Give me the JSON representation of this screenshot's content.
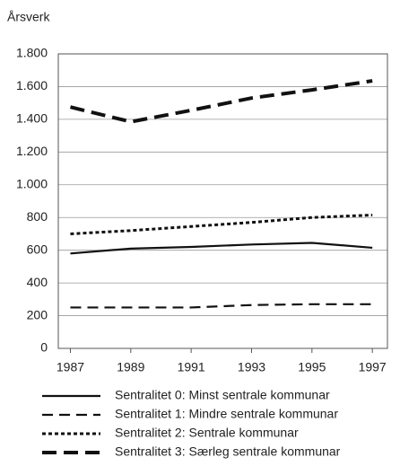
{
  "chart_data": {
    "type": "line",
    "y_label": "Årsverk",
    "x": [
      1987,
      1989,
      1991,
      1993,
      1995,
      1997
    ],
    "xlim": [
      1986.6,
      1997.5
    ],
    "xticks": [
      1987,
      1989,
      1991,
      1993,
      1995,
      1997
    ],
    "ylim": [
      0,
      1800
    ],
    "yticks": [
      0,
      200,
      400,
      600,
      800,
      {
        "value": 1000,
        "label": "1.000"
      },
      {
        "value": 1200,
        "label": "1.200"
      },
      {
        "value": 1400,
        "label": "1.400"
      },
      {
        "value": 1600,
        "label": "1.600"
      },
      {
        "value": 1800,
        "label": "1.800"
      }
    ],
    "grid": true,
    "legend": "bottom",
    "series": [
      {
        "name": "Sentralitet 0: Minst sentrale kommunar",
        "color": "#111111",
        "style": "solid",
        "values": [
          580,
          610,
          620,
          635,
          645,
          615
        ]
      },
      {
        "name": "Sentralitet 1: Mindre sentrale kommunar",
        "color": "#111111",
        "style": "dashed",
        "values": [
          250,
          250,
          250,
          265,
          270,
          270
        ]
      },
      {
        "name": "Sentralitet 2: Sentrale kommunar",
        "color": "#111111",
        "style": "dotted",
        "values": [
          700,
          720,
          745,
          770,
          800,
          815
        ]
      },
      {
        "name": "Sentralitet 3: Særleg sentrale kommunar",
        "color": "#111111",
        "style": "bold-dashed",
        "values": [
          1475,
          1385,
          1455,
          1530,
          1580,
          1635
        ]
      }
    ]
  }
}
